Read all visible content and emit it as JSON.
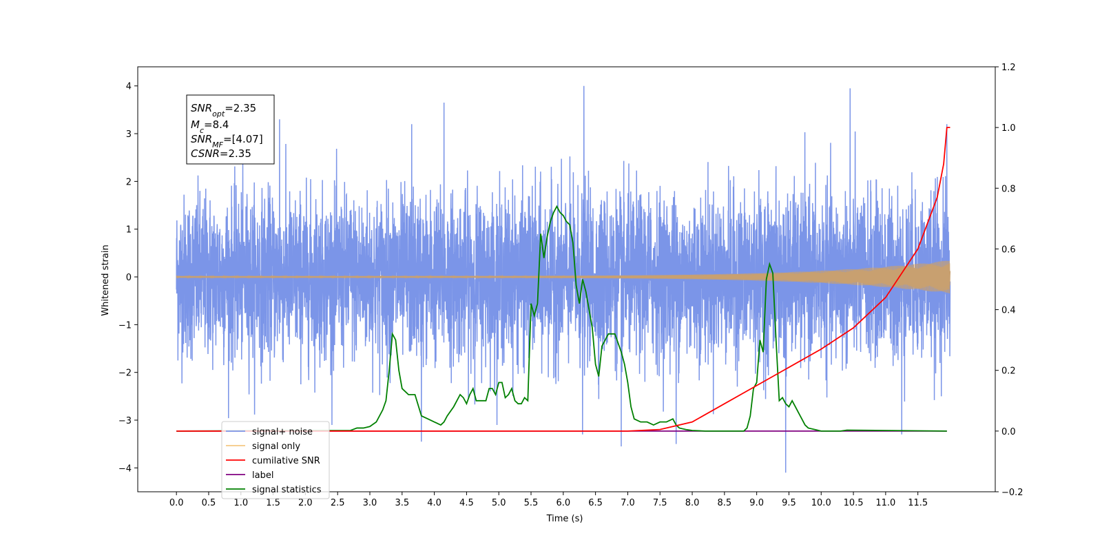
{
  "chart_data": {
    "type": "line",
    "title": "",
    "xlabel": "Time (s)",
    "ylabel": "Whitened strain",
    "ylabel_right": "",
    "xlim": [
      -0.6,
      12.7
    ],
    "ylim": [
      -4.5,
      4.4
    ],
    "ylim_right": [
      -0.2,
      1.2
    ],
    "xticks": [
      "0.0",
      "0.5",
      "1.0",
      "1.5",
      "2.0",
      "2.5",
      "3.0",
      "3.5",
      "4.0",
      "4.5",
      "5.0",
      "5.5",
      "6.0",
      "6.5",
      "7.0",
      "7.5",
      "8.0",
      "8.5",
      "9.0",
      "9.5",
      "10.0",
      "10.5",
      "11.0",
      "11.5"
    ],
    "yticks_left": [
      "4",
      "3",
      "2",
      "1",
      "0",
      "−1",
      "−2",
      "−3",
      "−4"
    ],
    "yticks_right": [
      "1.2",
      "1.0",
      "0.8",
      "0.6",
      "0.4",
      "0.2",
      "0.0",
      "−0.2"
    ],
    "grid": false,
    "legend_position": "bottom-left",
    "annotation": {
      "lines": [
        {
          "label": "SNR",
          "sub": "opt",
          "value": "=2.35"
        },
        {
          "label": "M",
          "sub": "c",
          "value": "=8.4"
        },
        {
          "label": "SNR",
          "sub": "MF",
          "value": "=[4.07]"
        },
        {
          "label": "CSNR",
          "sub": "",
          "value": "=2.35"
        }
      ]
    },
    "legend": [
      {
        "label": "signal+ noise",
        "color": "#7b95e8"
      },
      {
        "label": "signal only",
        "color": "#f5c882"
      },
      {
        "label": "cumilative SNR",
        "color": "#ff0000"
      },
      {
        "label": "label",
        "color": "#800080"
      },
      {
        "label": "signal statistics",
        "color": "#008000"
      }
    ],
    "series": [
      {
        "name": "signal+ noise",
        "axis": "left",
        "color": "#7b95e8",
        "x_range": [
          0.0,
          12.0
        ],
        "noise_sigma": 0.85,
        "peaks": [
          {
            "x": 6.32,
            "y": 4.0
          },
          {
            "x": 10.45,
            "y": 3.95
          },
          {
            "x": 4.15,
            "y": 3.65
          },
          {
            "x": 1.6,
            "y": 3.3
          },
          {
            "x": 3.65,
            "y": 3.2
          },
          {
            "x": 11.95,
            "y": 3.2
          },
          {
            "x": 9.45,
            "y": -4.1
          },
          {
            "x": 6.9,
            "y": -3.55
          },
          {
            "x": 3.8,
            "y": -3.45
          },
          {
            "x": 7.75,
            "y": -3.5
          },
          {
            "x": 6.3,
            "y": -3.3
          },
          {
            "x": 11.25,
            "y": -3.3
          }
        ]
      },
      {
        "name": "signal only",
        "axis": "left",
        "color": "#c8a070",
        "x_range": [
          0.0,
          12.0
        ],
        "amplitude_start": 0.02,
        "amplitude_end": 0.35
      },
      {
        "name": "cumilative SNR",
        "axis": "right",
        "color": "#ff0000",
        "x": [
          0.0,
          6.5,
          7.0,
          7.5,
          8.0,
          8.5,
          9.0,
          9.5,
          10.0,
          10.5,
          11.0,
          11.5,
          11.8,
          11.9,
          11.95,
          12.0
        ],
        "y": [
          0.0,
          0.0,
          0.0,
          0.005,
          0.03,
          0.09,
          0.15,
          0.21,
          0.27,
          0.34,
          0.44,
          0.6,
          0.77,
          0.88,
          1.0,
          1.0
        ]
      },
      {
        "name": "label",
        "axis": "right",
        "color": "#800080",
        "x": [
          0.0,
          11.95
        ],
        "y": [
          0.0,
          0.0
        ]
      },
      {
        "name": "signal statistics",
        "axis": "right",
        "color": "#008000",
        "x": [
          0.0,
          2.7,
          2.8,
          2.9,
          3.0,
          3.1,
          3.2,
          3.25,
          3.3,
          3.35,
          3.4,
          3.45,
          3.5,
          3.55,
          3.6,
          3.7,
          3.8,
          3.9,
          4.0,
          4.1,
          4.15,
          4.2,
          4.3,
          4.4,
          4.45,
          4.5,
          4.55,
          4.6,
          4.65,
          4.7,
          4.8,
          4.85,
          4.9,
          4.95,
          5.0,
          5.05,
          5.1,
          5.15,
          5.2,
          5.25,
          5.3,
          5.35,
          5.4,
          5.45,
          5.5,
          5.55,
          5.6,
          5.65,
          5.7,
          5.75,
          5.8,
          5.85,
          5.9,
          5.95,
          6.0,
          6.05,
          6.1,
          6.15,
          6.2,
          6.25,
          6.3,
          6.35,
          6.4,
          6.45,
          6.5,
          6.55,
          6.6,
          6.7,
          6.8,
          6.9,
          6.95,
          7.0,
          7.05,
          7.1,
          7.2,
          7.3,
          7.4,
          7.5,
          7.6,
          7.7,
          7.75,
          7.8,
          7.9,
          8.0,
          8.2,
          8.5,
          8.8,
          8.85,
          8.9,
          8.95,
          9.0,
          9.05,
          9.1,
          9.15,
          9.2,
          9.25,
          9.3,
          9.35,
          9.4,
          9.45,
          9.5,
          9.55,
          9.6,
          9.65,
          9.7,
          9.75,
          9.8,
          9.9,
          10.0,
          10.3,
          10.4,
          11.95
        ],
        "y": [
          0.0,
          0.002,
          0.01,
          0.01,
          0.015,
          0.03,
          0.07,
          0.1,
          0.2,
          0.32,
          0.3,
          0.2,
          0.14,
          0.13,
          0.12,
          0.12,
          0.05,
          0.04,
          0.03,
          0.02,
          0.03,
          0.05,
          0.08,
          0.12,
          0.11,
          0.09,
          0.12,
          0.14,
          0.1,
          0.1,
          0.1,
          0.14,
          0.14,
          0.12,
          0.16,
          0.16,
          0.11,
          0.12,
          0.14,
          0.1,
          0.09,
          0.09,
          0.11,
          0.1,
          0.42,
          0.38,
          0.42,
          0.65,
          0.57,
          0.64,
          0.69,
          0.72,
          0.74,
          0.72,
          0.71,
          0.69,
          0.68,
          0.62,
          0.48,
          0.42,
          0.5,
          0.46,
          0.4,
          0.34,
          0.22,
          0.18,
          0.28,
          0.32,
          0.32,
          0.26,
          0.22,
          0.16,
          0.08,
          0.04,
          0.03,
          0.03,
          0.02,
          0.03,
          0.03,
          0.04,
          0.02,
          0.01,
          0.005,
          0.002,
          0.0,
          0.0,
          0.0,
          0.01,
          0.05,
          0.14,
          0.16,
          0.3,
          0.26,
          0.5,
          0.55,
          0.52,
          0.3,
          0.1,
          0.11,
          0.09,
          0.08,
          0.1,
          0.08,
          0.06,
          0.04,
          0.02,
          0.01,
          0.005,
          0.0,
          0.0,
          0.003,
          0.0
        ]
      }
    ]
  }
}
